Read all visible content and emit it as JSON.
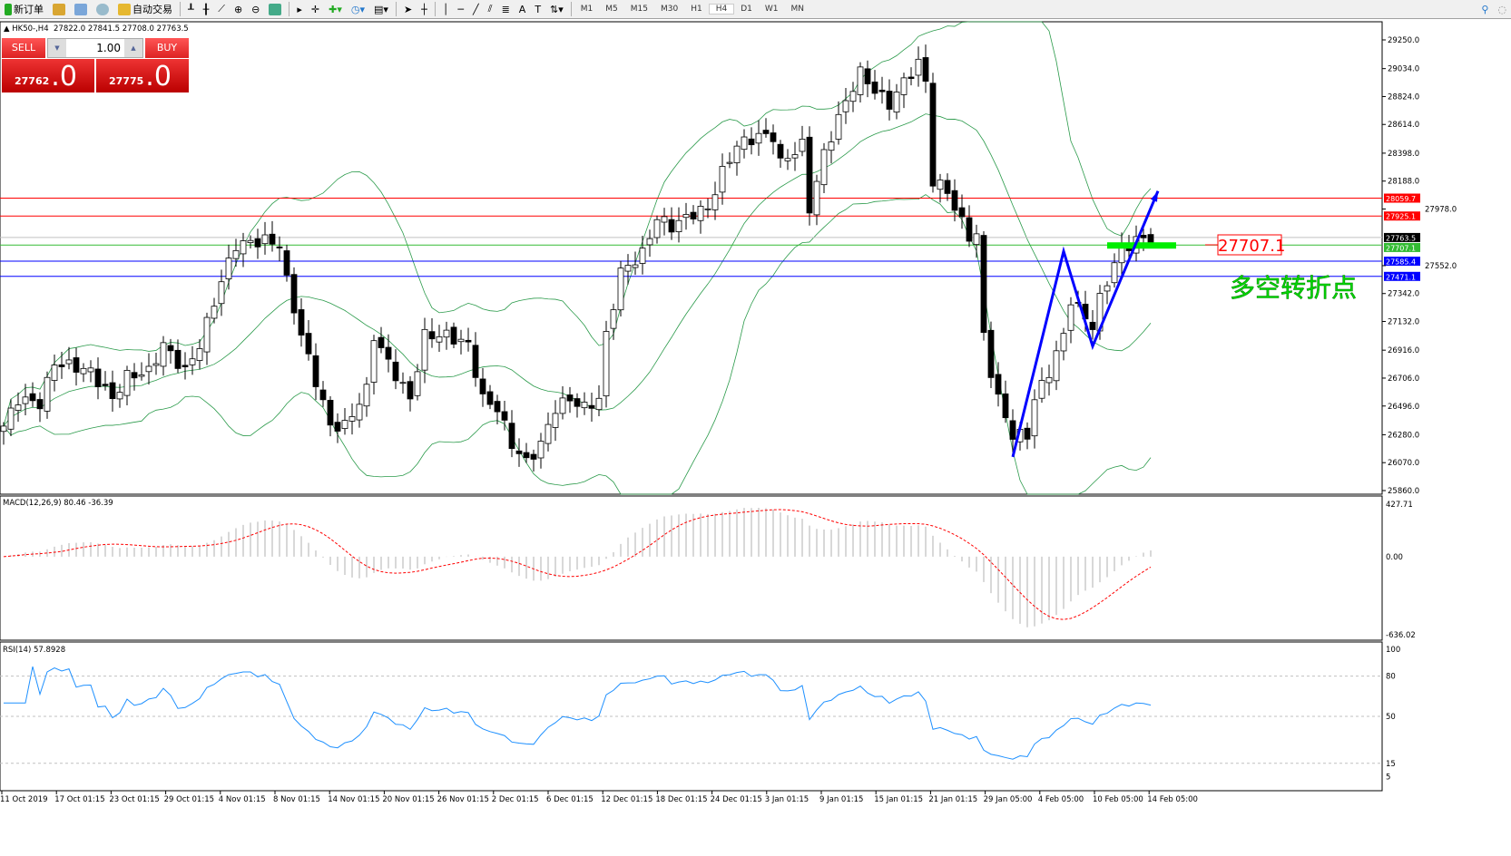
{
  "toolbar": {
    "new_order": "新订单",
    "auto_trading": "自动交易",
    "timeframes": [
      "M1",
      "M5",
      "M15",
      "M30",
      "H1",
      "H4",
      "D1",
      "W1",
      "MN"
    ],
    "active_timeframe": "H4"
  },
  "symbol": {
    "title": "HK50-,H4",
    "ohlc": "27822.0 27841.5 27708.0 27763.5"
  },
  "one_click": {
    "sell_label": "SELL",
    "buy_label": "BUY",
    "lot": "1.00",
    "sell_price": "27762",
    "sell_frac": ".0",
    "buy_price": "27775",
    "buy_frac": ".0"
  },
  "price_axis": {
    "labels": [
      "29250.0",
      "29034.0",
      "28824.0",
      "28614.0",
      "28398.0",
      "28188.0",
      "27978.0",
      "27552.0",
      "27342.0",
      "27132.0",
      "26916.0",
      "26706.0",
      "26496.0",
      "26280.0",
      "26070.0",
      "25860.0"
    ],
    "range": [
      25860,
      29250
    ]
  },
  "levels": [
    {
      "price": "28059.7",
      "color": "#ff0000"
    },
    {
      "price": "27925.1",
      "color": "#ff0000"
    },
    {
      "price": "27763.5",
      "color": "#000000",
      "line": "#c0c0c0"
    },
    {
      "price": "27707.1",
      "color": "#33bb33"
    },
    {
      "price": "27585.4",
      "color": "#0000ff"
    },
    {
      "price": "27471.1",
      "color": "#0000ff"
    }
  ],
  "annotation": {
    "price_label": "27707.1",
    "text": "多空转折点",
    "text_color": "#00dd00"
  },
  "price_path": [
    [
      0,
      26345
    ],
    [
      2,
      26549
    ],
    [
      5,
      26515
    ],
    [
      7,
      26822
    ],
    [
      10,
      26788
    ],
    [
      12,
      26754
    ],
    [
      15,
      26549
    ],
    [
      17,
      26720
    ],
    [
      20,
      26754
    ],
    [
      22,
      26958
    ],
    [
      25,
      26754
    ],
    [
      27,
      26958
    ],
    [
      30,
      27436
    ],
    [
      32,
      27709
    ],
    [
      36,
      27743
    ],
    [
      38,
      27709
    ],
    [
      39,
      27436
    ],
    [
      41,
      27027
    ],
    [
      43,
      26686
    ],
    [
      45,
      26345
    ],
    [
      47,
      26345
    ],
    [
      50,
      26617
    ],
    [
      51,
      27027
    ],
    [
      53,
      26822
    ],
    [
      56,
      26549
    ],
    [
      58,
      27027
    ],
    [
      61,
      27027
    ],
    [
      64,
      26958
    ],
    [
      66,
      26549
    ],
    [
      68,
      26481
    ],
    [
      70,
      26208
    ],
    [
      72,
      26072
    ],
    [
      74,
      26208
    ],
    [
      76,
      26481
    ],
    [
      78,
      26549
    ],
    [
      80,
      26481
    ],
    [
      82,
      26549
    ],
    [
      83,
      27027
    ],
    [
      85,
      27504
    ],
    [
      88,
      27640
    ],
    [
      90,
      27913
    ],
    [
      92,
      27845
    ],
    [
      95,
      27947
    ],
    [
      97,
      27981
    ],
    [
      99,
      28254
    ],
    [
      101,
      28459
    ],
    [
      104,
      28527
    ],
    [
      106,
      28527
    ],
    [
      107,
      28322
    ],
    [
      110,
      28459
    ],
    [
      111,
      27981
    ],
    [
      113,
      28391
    ],
    [
      115,
      28663
    ],
    [
      117,
      28902
    ],
    [
      118,
      29004
    ],
    [
      120,
      28868
    ],
    [
      122,
      28766
    ],
    [
      124,
      28936
    ],
    [
      126,
      29073
    ],
    [
      127,
      28936
    ],
    [
      128,
      28186
    ],
    [
      130,
      28118
    ],
    [
      131,
      27981
    ],
    [
      133,
      27777
    ],
    [
      134,
      27777
    ],
    [
      135,
      27027
    ],
    [
      136,
      26754
    ],
    [
      137,
      26549
    ],
    [
      139,
      26276
    ],
    [
      141,
      26276
    ],
    [
      142,
      26549
    ],
    [
      144,
      26754
    ],
    [
      146,
      27027
    ],
    [
      147,
      27299
    ],
    [
      149,
      27163
    ],
    [
      150,
      27095
    ],
    [
      151,
      27299
    ],
    [
      153,
      27572
    ],
    [
      154,
      27675
    ],
    [
      156,
      27743
    ],
    [
      158,
      27763
    ]
  ],
  "bollinger_period": 20,
  "zigzag": [
    [
      139,
      26113
    ],
    [
      146,
      27660
    ],
    [
      150,
      26946
    ],
    [
      159,
      28113
    ]
  ],
  "green_bar": {
    "price": 27707,
    "from": 152,
    "to": 160
  },
  "macd": {
    "label": "MACD(12,26,9) 80.46 -36.39",
    "axis": [
      "427.71",
      "0.00",
      "-636.02"
    ],
    "range": [
      -636.02,
      427.71
    ]
  },
  "rsi": {
    "label": "RSI(14) 57.8928",
    "axis": [
      "100",
      "80",
      "50",
      "15",
      "5"
    ],
    "levels": [
      80,
      50,
      15
    ]
  },
  "time_axis": [
    "11 Oct 2019",
    "17 Oct 01:15",
    "23 Oct 01:15",
    "29 Oct 01:15",
    "4 Nov 01:15",
    "8 Nov 01:15",
    "14 Nov 01:15",
    "20 Nov 01:15",
    "26 Nov 01:15",
    "2 Dec 01:15",
    "6 Dec 01:15",
    "12 Dec 01:15",
    "18 Dec 01:15",
    "24 Dec 01:15",
    "3 Jan 01:15",
    "9 Jan 01:15",
    "15 Jan 01:15",
    "21 Jan 01:15",
    "29 Jan 05:00",
    "4 Feb 05:00",
    "10 Feb 05:00",
    "14 Feb 05:00"
  ]
}
